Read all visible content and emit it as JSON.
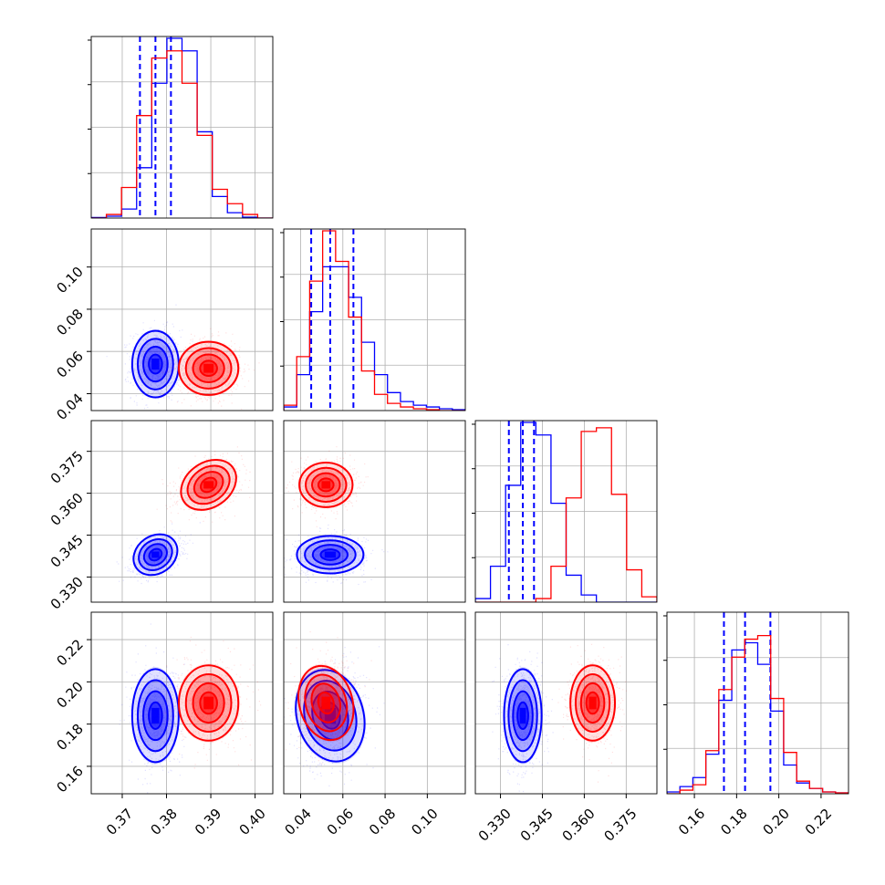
{
  "chart_data": {
    "type": "corner",
    "params": [
      {
        "ticks": [
          0.37,
          0.38,
          0.39,
          0.4
        ],
        "tick_labels": [
          "0.37",
          "0.38",
          "0.39",
          "0.40"
        ],
        "range": [
          0.363,
          0.404
        ]
      },
      {
        "ticks": [
          0.04,
          0.06,
          0.08,
          0.1
        ],
        "tick_labels": [
          "0.04",
          "0.06",
          "0.08",
          "0.10"
        ],
        "range": [
          0.032,
          0.118
        ]
      },
      {
        "ticks": [
          0.33,
          0.345,
          0.36,
          0.375
        ],
        "tick_labels": [
          "0.330",
          "0.345",
          "0.360",
          "0.375"
        ],
        "range": [
          0.321,
          0.386
        ]
      },
      {
        "ticks": [
          0.16,
          0.18,
          0.2,
          0.22
        ],
        "tick_labels": [
          "0.16",
          "0.18",
          "0.20",
          "0.22"
        ],
        "range": [
          0.147,
          0.233
        ]
      }
    ],
    "series": [
      {
        "color": "#0000ff",
        "means": [
          0.3775,
          0.054,
          0.338,
          0.184
        ],
        "sigmas": [
          0.0025,
          0.0075,
          0.0032,
          0.0105
        ],
        "quantiles": [
          [
            0.374,
            0.3775,
            0.381
          ],
          [
            0.045,
            0.054,
            0.065
          ],
          [
            0.333,
            0.338,
            0.342
          ],
          [
            0.174,
            0.184,
            0.196
          ]
        ],
        "hist_heights": [
          [
            0.003,
            0.01,
            0.05,
            0.28,
            0.75,
            1.0,
            0.93,
            0.48,
            0.12,
            0.03,
            0.005,
            0.0
          ],
          [
            0.02,
            0.2,
            0.55,
            0.8,
            0.8,
            0.63,
            0.38,
            0.2,
            0.1,
            0.05,
            0.03,
            0.02,
            0.01,
            0.005
          ],
          [
            0.02,
            0.2,
            0.65,
            1.0,
            0.93,
            0.55,
            0.15,
            0.04,
            0.0,
            0.0,
            0.0,
            0.0
          ],
          [
            0.01,
            0.04,
            0.09,
            0.22,
            0.52,
            0.8,
            0.84,
            0.72,
            0.46,
            0.16,
            0.06,
            0.03,
            0.01,
            0.005
          ]
        ]
      },
      {
        "color": "#ff0000",
        "means": [
          0.3895,
          0.052,
          0.363,
          0.19
        ],
        "sigmas": [
          0.0032,
          0.006,
          0.0038,
          0.0085
        ],
        "quantiles": [],
        "hist_heights": [
          [
            0.0,
            0.02,
            0.17,
            0.57,
            0.89,
            0.93,
            0.75,
            0.46,
            0.16,
            0.08,
            0.02,
            0.0
          ],
          [
            0.03,
            0.3,
            0.72,
            1.0,
            0.83,
            0.52,
            0.22,
            0.09,
            0.04,
            0.02,
            0.01,
            0.005,
            0.0,
            0.0
          ],
          [
            0.0,
            0.0,
            0.0,
            0.0,
            0.02,
            0.2,
            0.58,
            0.95,
            0.97,
            0.6,
            0.18,
            0.03
          ],
          [
            0.0,
            0.02,
            0.05,
            0.24,
            0.58,
            0.76,
            0.86,
            0.88,
            0.53,
            0.23,
            0.07,
            0.03,
            0.01,
            0.005
          ]
        ]
      }
    ],
    "correlations": [
      [
        0.0,
        0.0,
        0.0,
        0.0
      ],
      [
        0.0,
        0.0,
        0.0,
        0.0
      ],
      [
        0.35,
        0.0,
        0.0,
        0.0
      ],
      [
        0.0,
        0.15,
        0.0,
        0.0
      ]
    ],
    "grid": true
  }
}
